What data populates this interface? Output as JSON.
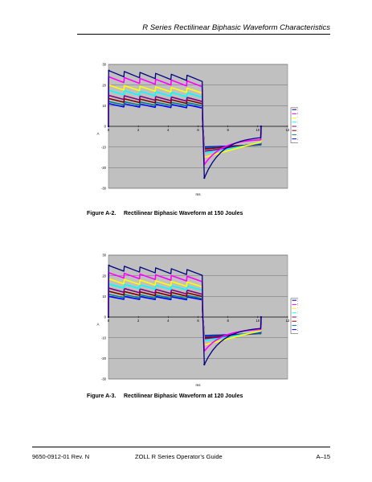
{
  "header": {
    "title": "R Series Rectilinear Biphasic Waveform Characteristics"
  },
  "figures": [
    {
      "caption_label": "Figure A-2.",
      "caption_text": "Rectilinear Biphasic Waveform at 150 Joules",
      "chart_data": {
        "type": "line",
        "xlabel": "ms",
        "ylabel": "A",
        "xlim": [
          0,
          12
        ],
        "ylim": [
          -30,
          30
        ],
        "x_ticks": [
          "0",
          "2",
          "4",
          "6",
          "8",
          "10",
          "12"
        ],
        "y_ticks": [
          "30",
          "20",
          "10",
          "0",
          "-10",
          "-20",
          "-30"
        ],
        "grid": true,
        "legend_position": "right",
        "series": [
          {
            "name": "25 Ohm",
            "color": "#000080",
            "start": 27.0,
            "end": 22.5,
            "neg_start": -25.0,
            "neg_end": -5.5
          },
          {
            "name": "50 Ohm",
            "color": "#ff00ff",
            "start": 24.0,
            "end": 20.0,
            "neg_start": -18.5,
            "neg_end": -6.5
          },
          {
            "name": "75 Ohm",
            "color": "#ffff00",
            "start": 20.0,
            "end": 17.0,
            "neg_start": -15.0,
            "neg_end": -7.5
          },
          {
            "name": "100 Ohm",
            "color": "#00ffff",
            "start": 17.5,
            "end": 15.0,
            "neg_start": -13.0,
            "neg_end": -8.0
          },
          {
            "name": "125 Ohm",
            "color": "#800080",
            "start": 15.0,
            "end": 13.0,
            "neg_start": -12.0,
            "neg_end": -8.5
          },
          {
            "name": "150 Ohm",
            "color": "#800000",
            "start": 13.5,
            "end": 12.0,
            "neg_start": -11.0,
            "neg_end": -8.5
          },
          {
            "name": "175 Ohm",
            "color": "#008080",
            "start": 12.0,
            "end": 11.0,
            "neg_start": -10.5,
            "neg_end": -9.0
          },
          {
            "name": "200 Ohm",
            "color": "#0000ff",
            "start": 11.0,
            "end": 10.0,
            "neg_start": -10.0,
            "neg_end": -9.0
          }
        ]
      }
    },
    {
      "caption_label": "Figure A-3.",
      "caption_text": "Rectilinear Biphasic Waveform at 120 Joules",
      "chart_data": {
        "type": "line",
        "xlabel": "ms",
        "ylabel": "A",
        "xlim": [
          0,
          12
        ],
        "ylim": [
          -30,
          30
        ],
        "x_ticks": [
          "0",
          "2",
          "4",
          "6",
          "8",
          "10",
          "12"
        ],
        "y_ticks": [
          "30",
          "20",
          "10",
          "0",
          "-10",
          "-20",
          "-30"
        ],
        "grid": true,
        "legend_position": "right",
        "series": [
          {
            "name": "25 Ohm",
            "color": "#000080",
            "start": 25.0,
            "end": 21.0,
            "neg_start": -23.0,
            "neg_end": -5.5
          },
          {
            "name": "50 Ohm",
            "color": "#ff00ff",
            "start": 21.5,
            "end": 18.0,
            "neg_start": -16.5,
            "neg_end": -6.0
          },
          {
            "name": "75 Ohm",
            "color": "#ffff00",
            "start": 18.5,
            "end": 15.5,
            "neg_start": -13.5,
            "neg_end": -6.5
          },
          {
            "name": "100 Ohm",
            "color": "#00ffff",
            "start": 16.0,
            "end": 14.0,
            "neg_start": -11.5,
            "neg_end": -7.0
          },
          {
            "name": "125 Ohm",
            "color": "#800080",
            "start": 14.0,
            "end": 12.0,
            "neg_start": -10.5,
            "neg_end": -7.5
          },
          {
            "name": "150 Ohm",
            "color": "#800000",
            "start": 12.5,
            "end": 11.0,
            "neg_start": -10.0,
            "neg_end": -7.5
          },
          {
            "name": "175 Ohm",
            "color": "#008080",
            "start": 11.0,
            "end": 10.0,
            "neg_start": -9.5,
            "neg_end": -8.0
          },
          {
            "name": "200 Ohm",
            "color": "#0000ff",
            "start": 10.0,
            "end": 9.5,
            "neg_start": -9.0,
            "neg_end": -8.0
          }
        ]
      }
    }
  ],
  "footer": {
    "left": "9650-0912-01 Rev. N",
    "center": "ZOLL R Series Operator’s Guide",
    "right": "A–15"
  }
}
